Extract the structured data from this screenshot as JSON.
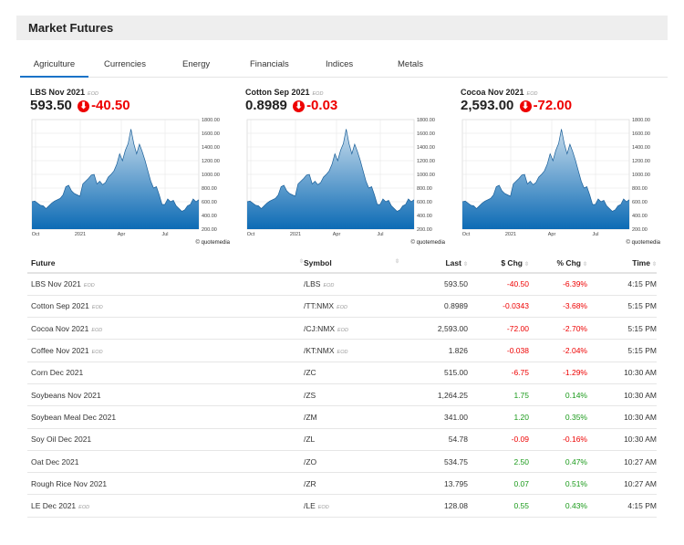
{
  "header": {
    "title": "Market Futures"
  },
  "tabs": [
    "Agriculture",
    "Currencies",
    "Energy",
    "Financials",
    "Indices",
    "Metals"
  ],
  "active_tab": "Agriculture",
  "colors": {
    "negative": "#e00000",
    "positive": "#1a9a1a",
    "accent": "#1a73c8",
    "chart_fill": "#1a6fb5"
  },
  "cards": [
    {
      "name": "LBS Nov 2021",
      "tag": "EOD",
      "last": "593.50",
      "change": "-40.50",
      "icon": "down-arrow-circle-icon"
    },
    {
      "name": "Cotton Sep 2021",
      "tag": "EOD",
      "last": "0.8989",
      "change": "-0.03",
      "icon": "down-arrow-circle-icon"
    },
    {
      "name": "Cocoa Nov 2021",
      "tag": "EOD",
      "last": "2,593.00",
      "change": "-72.00",
      "icon": "down-arrow-circle-icon"
    }
  ],
  "chart_data": {
    "type": "area",
    "x_ticks": [
      "Oct",
      "2021",
      "Apr",
      "Jul"
    ],
    "y_ticks": [
      "1800.00",
      "1600.00",
      "1400.00",
      "1200.00",
      "1000.00",
      "800.00",
      "600.00",
      "400.00",
      "200.00"
    ],
    "ylim": [
      200,
      1800
    ],
    "credit": "© quotemedia",
    "values": [
      600,
      610,
      580,
      550,
      540,
      500,
      540,
      580,
      610,
      630,
      650,
      700,
      820,
      840,
      760,
      720,
      700,
      680,
      860,
      900,
      940,
      990,
      1000,
      860,
      900,
      850,
      880,
      960,
      1000,
      1050,
      1150,
      1300,
      1200,
      1350,
      1450,
      1660,
      1450,
      1300,
      1440,
      1330,
      1200,
      1050,
      900,
      800,
      820,
      700,
      560,
      560,
      640,
      600,
      620,
      540,
      500,
      460,
      480,
      540,
      560,
      640,
      600,
      630
    ]
  },
  "table": {
    "headers": [
      "Future",
      "Symbol",
      "Last",
      "$ Chg",
      "% Chg",
      "Time"
    ],
    "rows": [
      {
        "future": "LBS Nov 2021",
        "ftag": "EOD",
        "symbol": "/LBS",
        "stag": "EOD",
        "last": "593.50",
        "chg": "-40.50",
        "pct": "-6.39%",
        "time": "4:15 PM",
        "dir": "neg"
      },
      {
        "future": "Cotton Sep 2021",
        "ftag": "EOD",
        "symbol": "/TT:NMX",
        "stag": "EOD",
        "last": "0.8989",
        "chg": "-0.0343",
        "pct": "-3.68%",
        "time": "5:15 PM",
        "dir": "neg"
      },
      {
        "future": "Cocoa Nov 2021",
        "ftag": "EOD",
        "symbol": "/CJ:NMX",
        "stag": "EOD",
        "last": "2,593.00",
        "chg": "-72.00",
        "pct": "-2.70%",
        "time": "5:15 PM",
        "dir": "neg"
      },
      {
        "future": "Coffee Nov 2021",
        "ftag": "EOD",
        "symbol": "/KT:NMX",
        "stag": "EOD",
        "last": "1.826",
        "chg": "-0.038",
        "pct": "-2.04%",
        "time": "5:15 PM",
        "dir": "neg"
      },
      {
        "future": "Corn Dec 2021",
        "ftag": "",
        "symbol": "/ZC",
        "stag": "",
        "last": "515.00",
        "chg": "-6.75",
        "pct": "-1.29%",
        "time": "10:30 AM",
        "dir": "neg"
      },
      {
        "future": "Soybeans Nov 2021",
        "ftag": "",
        "symbol": "/ZS",
        "stag": "",
        "last": "1,264.25",
        "chg": "1.75",
        "pct": "0.14%",
        "time": "10:30 AM",
        "dir": "pos"
      },
      {
        "future": "Soybean Meal Dec 2021",
        "ftag": "",
        "symbol": "/ZM",
        "stag": "",
        "last": "341.00",
        "chg": "1.20",
        "pct": "0.35%",
        "time": "10:30 AM",
        "dir": "pos"
      },
      {
        "future": "Soy Oil Dec 2021",
        "ftag": "",
        "symbol": "/ZL",
        "stag": "",
        "last": "54.78",
        "chg": "-0.09",
        "pct": "-0.16%",
        "time": "10:30 AM",
        "dir": "neg"
      },
      {
        "future": "Oat Dec 2021",
        "ftag": "",
        "symbol": "/ZO",
        "stag": "",
        "last": "534.75",
        "chg": "2.50",
        "pct": "0.47%",
        "time": "10:27 AM",
        "dir": "pos"
      },
      {
        "future": "Rough Rice Nov 2021",
        "ftag": "",
        "symbol": "/ZR",
        "stag": "",
        "last": "13.795",
        "chg": "0.07",
        "pct": "0.51%",
        "time": "10:27 AM",
        "dir": "pos"
      },
      {
        "future": "LE Dec 2021",
        "ftag": "EOD",
        "symbol": "/LE",
        "stag": "EOD",
        "last": "128.08",
        "chg": "0.55",
        "pct": "0.43%",
        "time": "4:15 PM",
        "dir": "pos"
      }
    ]
  }
}
